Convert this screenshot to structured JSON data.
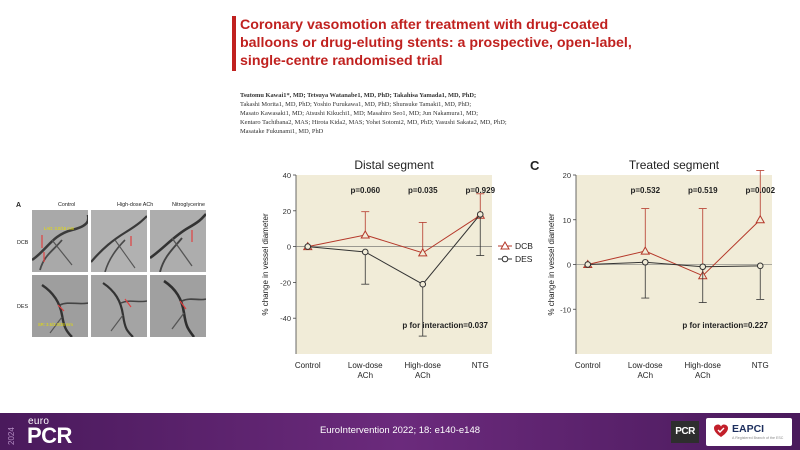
{
  "paper": {
    "title_lines": [
      "Coronary vasomotion after treatment with drug-coated",
      "balloons or drug-eluting stents: a prospective, open-label,",
      "single-centre randomised trial"
    ],
    "author_lines": [
      "Tsutomu Kawai1*, MD; Tetsuya Watanabe1, MD, PhD; Takahisa Yamada1, MD, PhD;",
      "Takashi Morita1, MD, PhD; Yoshio Furukawa1, MD, PhD; Shunsuke Tamaki1, MD, PhD;",
      "Masato Kawasaki1, MD; Atsushi Kikuchi1, MD; Masahiro Seo1, MD; Jun Nakamura1, MD;",
      "Kentaro Tachibana2, MAS; Hirota Kida2, MAS; Yohei Sotomi2, MD, PhD; Yasushi Sakata2, MD, PhD;",
      "Masatake Fukunami1, MD, PhD"
    ]
  },
  "panel_a": {
    "label": "A",
    "columns": [
      "Control",
      "High-dose ACh",
      "Nitroglycerine"
    ],
    "rows": [
      "DCB",
      "DES"
    ],
    "annotations": {
      "dcb_text": "LAD: 3.0/15 mm",
      "des_text": "SR: 3.5/3.0/38 mm"
    }
  },
  "panel_b": {
    "label": "",
    "chart_data": {
      "type": "line",
      "title": "Distal segment",
      "categories": [
        "Control",
        "Low-dose ACh",
        "High-dose ACh",
        "NTG"
      ],
      "category_lines": [
        [
          "Control"
        ],
        [
          "Low-dose",
          "ACh"
        ],
        [
          "High-dose",
          "ACh"
        ],
        [
          "NTG"
        ]
      ],
      "ylabel": "% change in vessel diameter",
      "ylim": [
        -60,
        40
      ],
      "yticks": [
        -40,
        -20,
        0,
        20,
        40
      ],
      "series": [
        {
          "name": "DCB",
          "values": [
            0,
            6.5,
            -3.5,
            17.5
          ],
          "err_up": [
            0,
            13,
            17,
            12
          ],
          "err_down": [
            0,
            0,
            0,
            0
          ],
          "color": "#b5382a",
          "marker": "triangle"
        },
        {
          "name": "DES",
          "values": [
            0,
            -3,
            -21,
            18
          ],
          "err_up": [
            0,
            0,
            0,
            0
          ],
          "err_down": [
            0,
            18,
            29,
            23
          ],
          "color": "#333333",
          "marker": "circle"
        }
      ],
      "p_values": [
        {
          "category": 1,
          "text": "p=0.060"
        },
        {
          "category": 2,
          "text": "p=0.035"
        },
        {
          "category": 3,
          "text": "p=0.929"
        }
      ],
      "interaction": "p for interaction=0.037",
      "legend": [
        "DCB",
        "DES"
      ]
    }
  },
  "panel_c": {
    "label": "C",
    "chart_data": {
      "type": "line",
      "title": "Treated segment",
      "categories": [
        "Control",
        "Low-dose ACh",
        "High-dose ACh",
        "NTG"
      ],
      "category_lines": [
        [
          "Control"
        ],
        [
          "Low-dose",
          "ACh"
        ],
        [
          "High-dose",
          "ACh"
        ],
        [
          "NTG"
        ]
      ],
      "ylabel": "% change in vessel diameter",
      "ylim": [
        -20,
        20
      ],
      "yticks": [
        -10,
        0,
        10,
        20
      ],
      "series": [
        {
          "name": "DCB",
          "values": [
            0,
            3,
            -2.5,
            10
          ],
          "err_up": [
            0,
            9.5,
            15,
            11
          ],
          "err_down": [
            0,
            0,
            0,
            0
          ],
          "color": "#b5382a",
          "marker": "triangle"
        },
        {
          "name": "DES",
          "values": [
            0,
            0.5,
            -0.5,
            -0.3
          ],
          "err_up": [
            0,
            0,
            0,
            0
          ],
          "err_down": [
            0,
            8,
            8,
            7.5
          ],
          "color": "#333333",
          "marker": "circle"
        }
      ],
      "p_values": [
        {
          "category": 1,
          "text": "p=0.532"
        },
        {
          "category": 2,
          "text": "p=0.519"
        },
        {
          "category": 3,
          "text": "p=0.002"
        }
      ],
      "interaction": "p for interaction=0.227"
    }
  },
  "footer": {
    "year": "2024",
    "logo_euro": "euro",
    "logo_pcr": "PCR",
    "citation": "EuroIntervention 2022; 18: e140-e148",
    "pcr_badge": "PCR",
    "eapci": "EAPCI",
    "eapci_sub": "A Registered Branch of the ESC"
  },
  "colors": {
    "title_red": "#c0211f",
    "chart_bg": "#f1ecd8",
    "footer_purple": "#5c1f6e",
    "dcb": "#b5382a",
    "des": "#333333"
  }
}
